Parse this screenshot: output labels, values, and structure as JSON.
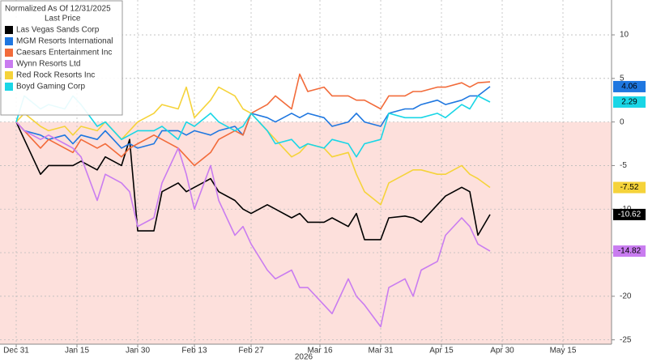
{
  "chart_data": {
    "type": "line",
    "title": "Normalized As Of 12/31/2025",
    "subtitle": "Last Price",
    "year_label": "2026",
    "x": [
      "2025-12-31",
      "2026-01-02",
      "2026-01-06",
      "2026-01-08",
      "2026-01-12",
      "2026-01-14",
      "2026-01-16",
      "2026-01-20",
      "2026-01-22",
      "2026-01-26",
      "2026-01-28",
      "2026-01-30",
      "2026-02-03",
      "2026-02-05",
      "2026-02-09",
      "2026-02-11",
      "2026-02-13",
      "2026-02-17",
      "2026-02-19",
      "2026-02-23",
      "2026-02-25",
      "2026-02-27",
      "2026-03-03",
      "2026-03-05",
      "2026-03-09",
      "2026-03-11",
      "2026-03-13",
      "2026-03-17",
      "2026-03-19",
      "2026-03-23",
      "2026-03-25",
      "2026-03-27",
      "2026-03-31",
      "2026-04-02",
      "2026-04-06",
      "2026-04-08",
      "2026-04-10",
      "2026-04-14",
      "2026-04-16",
      "2026-04-20",
      "2026-04-22",
      "2026-04-24",
      "2026-04-27"
    ],
    "xlim": [
      "2025-12-27",
      "2026-05-27"
    ],
    "xticks": [
      {
        "value": "2025-12-31",
        "label": "Dec 31"
      },
      {
        "value": "2026-01-15",
        "label": "Jan 15"
      },
      {
        "value": "2026-01-30",
        "label": "Jan 30"
      },
      {
        "value": "2026-02-13",
        "label": "Feb 13"
      },
      {
        "value": "2026-02-27",
        "label": "Feb 27"
      },
      {
        "value": "2026-03-16",
        "label": "Mar 16"
      },
      {
        "value": "2026-03-31",
        "label": "Mar 31"
      },
      {
        "value": "2026-04-15",
        "label": "Apr 15"
      },
      {
        "value": "2026-04-30",
        "label": "Apr 30"
      },
      {
        "value": "2026-05-15",
        "label": "May 15"
      }
    ],
    "ylim": [
      -25.5,
      14
    ],
    "yticks": [
      10,
      5,
      0,
      -5,
      -10,
      -15,
      -20,
      -25
    ],
    "grid": true,
    "negative_shading": "#fde0dc",
    "legend": "top-left",
    "series": [
      {
        "name": "Las Vegas Sands Corp",
        "color": "#000000",
        "end_label": true,
        "values": [
          0,
          -2,
          -6,
          -5,
          -5,
          -5,
          -4.5,
          -5.5,
          -4,
          -5,
          -2,
          -12.5,
          -12.5,
          -8,
          -7,
          -8,
          -7.5,
          -6.5,
          -8,
          -9,
          -10,
          -10.5,
          -9.5,
          -10,
          -11,
          -10.5,
          -11.5,
          -11.5,
          -11,
          -12,
          -10.5,
          -13.5,
          -13.5,
          -11,
          -10.8,
          -11,
          -11.5,
          -9.5,
          -8.5,
          -7.5,
          -8,
          -13,
          -10.62
        ]
      },
      {
        "name": "MGM Resorts International",
        "color": "#1f77e0",
        "end_label": true,
        "values": [
          0,
          -1,
          -1.5,
          -2,
          -1.5,
          -2.5,
          -1.5,
          -2,
          -1,
          -3,
          -2.5,
          -3,
          -2.5,
          -1,
          -1,
          -1.5,
          -1,
          -1.5,
          -1,
          -0.5,
          -1.5,
          1,
          0.5,
          0,
          1,
          0.5,
          1,
          0.5,
          -0.5,
          0,
          1,
          0,
          -0.5,
          1,
          1.5,
          1.5,
          2,
          2.5,
          2,
          2.5,
          3,
          3,
          4.06
        ]
      },
      {
        "name": "Caesars Entertainment Inc",
        "color": "#f26b3a",
        "end_label": false,
        "values": [
          0,
          -1,
          -3,
          -2,
          -3,
          -3.5,
          -2,
          -3,
          -2.5,
          -4,
          -3,
          -2.5,
          -1.5,
          -2,
          -3,
          -4,
          -5,
          -3.5,
          -2,
          -1,
          -1.5,
          1,
          2,
          3,
          1.5,
          5.5,
          3.5,
          4,
          3,
          3,
          2.5,
          2.5,
          1.5,
          3,
          3,
          3.5,
          3.5,
          4,
          4,
          4.5,
          4,
          4.5,
          4.6
        ]
      },
      {
        "name": "Wynn Resorts Ltd",
        "color": "#c97cf0",
        "end_label": true,
        "values": [
          0,
          -1,
          -2,
          -1.5,
          -2.5,
          -3,
          -4,
          -9,
          -6,
          -7,
          -8,
          -12,
          -11,
          -7,
          -3,
          -6,
          -10,
          -5,
          -9,
          -13,
          -12,
          -14,
          -17,
          -18,
          -17,
          -19,
          -19,
          -21,
          -22,
          -18,
          -20,
          -21,
          -23.5,
          -19,
          -18,
          -20,
          -17,
          -16,
          -13,
          -11,
          -12,
          -14,
          -14.82
        ]
      },
      {
        "name": "Red Rock Resorts Inc",
        "color": "#f5d33a",
        "end_label": true,
        "values": [
          0,
          1,
          -0.5,
          -1,
          -0.5,
          -1.5,
          -0.5,
          -1,
          0,
          -2,
          -1,
          0,
          1,
          2,
          1.5,
          4,
          0.5,
          2.5,
          4,
          3,
          1.5,
          1,
          -1,
          -2,
          -4,
          -3.5,
          -2.5,
          -3,
          -4,
          -3.5,
          -6,
          -8,
          -9.5,
          -7,
          -6,
          -5.5,
          -5.5,
          -6,
          -6,
          -5,
          -6,
          -6.5,
          -7.52
        ]
      },
      {
        "name": "Boyd Gaming Corp",
        "color": "#19d6e6",
        "end_label": true,
        "values": [
          0,
          3,
          1.5,
          2,
          1.5,
          3,
          2,
          -0.5,
          0,
          -2,
          -1.5,
          -1,
          -1,
          -0.5,
          -2,
          0,
          -0.5,
          1,
          0,
          -1,
          -0.5,
          1,
          -1,
          -2.5,
          -2,
          -3,
          -2.5,
          -3,
          -2,
          -2.5,
          -4,
          -2.5,
          -2,
          1,
          0.5,
          0.5,
          0.5,
          1,
          0.5,
          2,
          1.5,
          3,
          2.29
        ]
      }
    ]
  }
}
